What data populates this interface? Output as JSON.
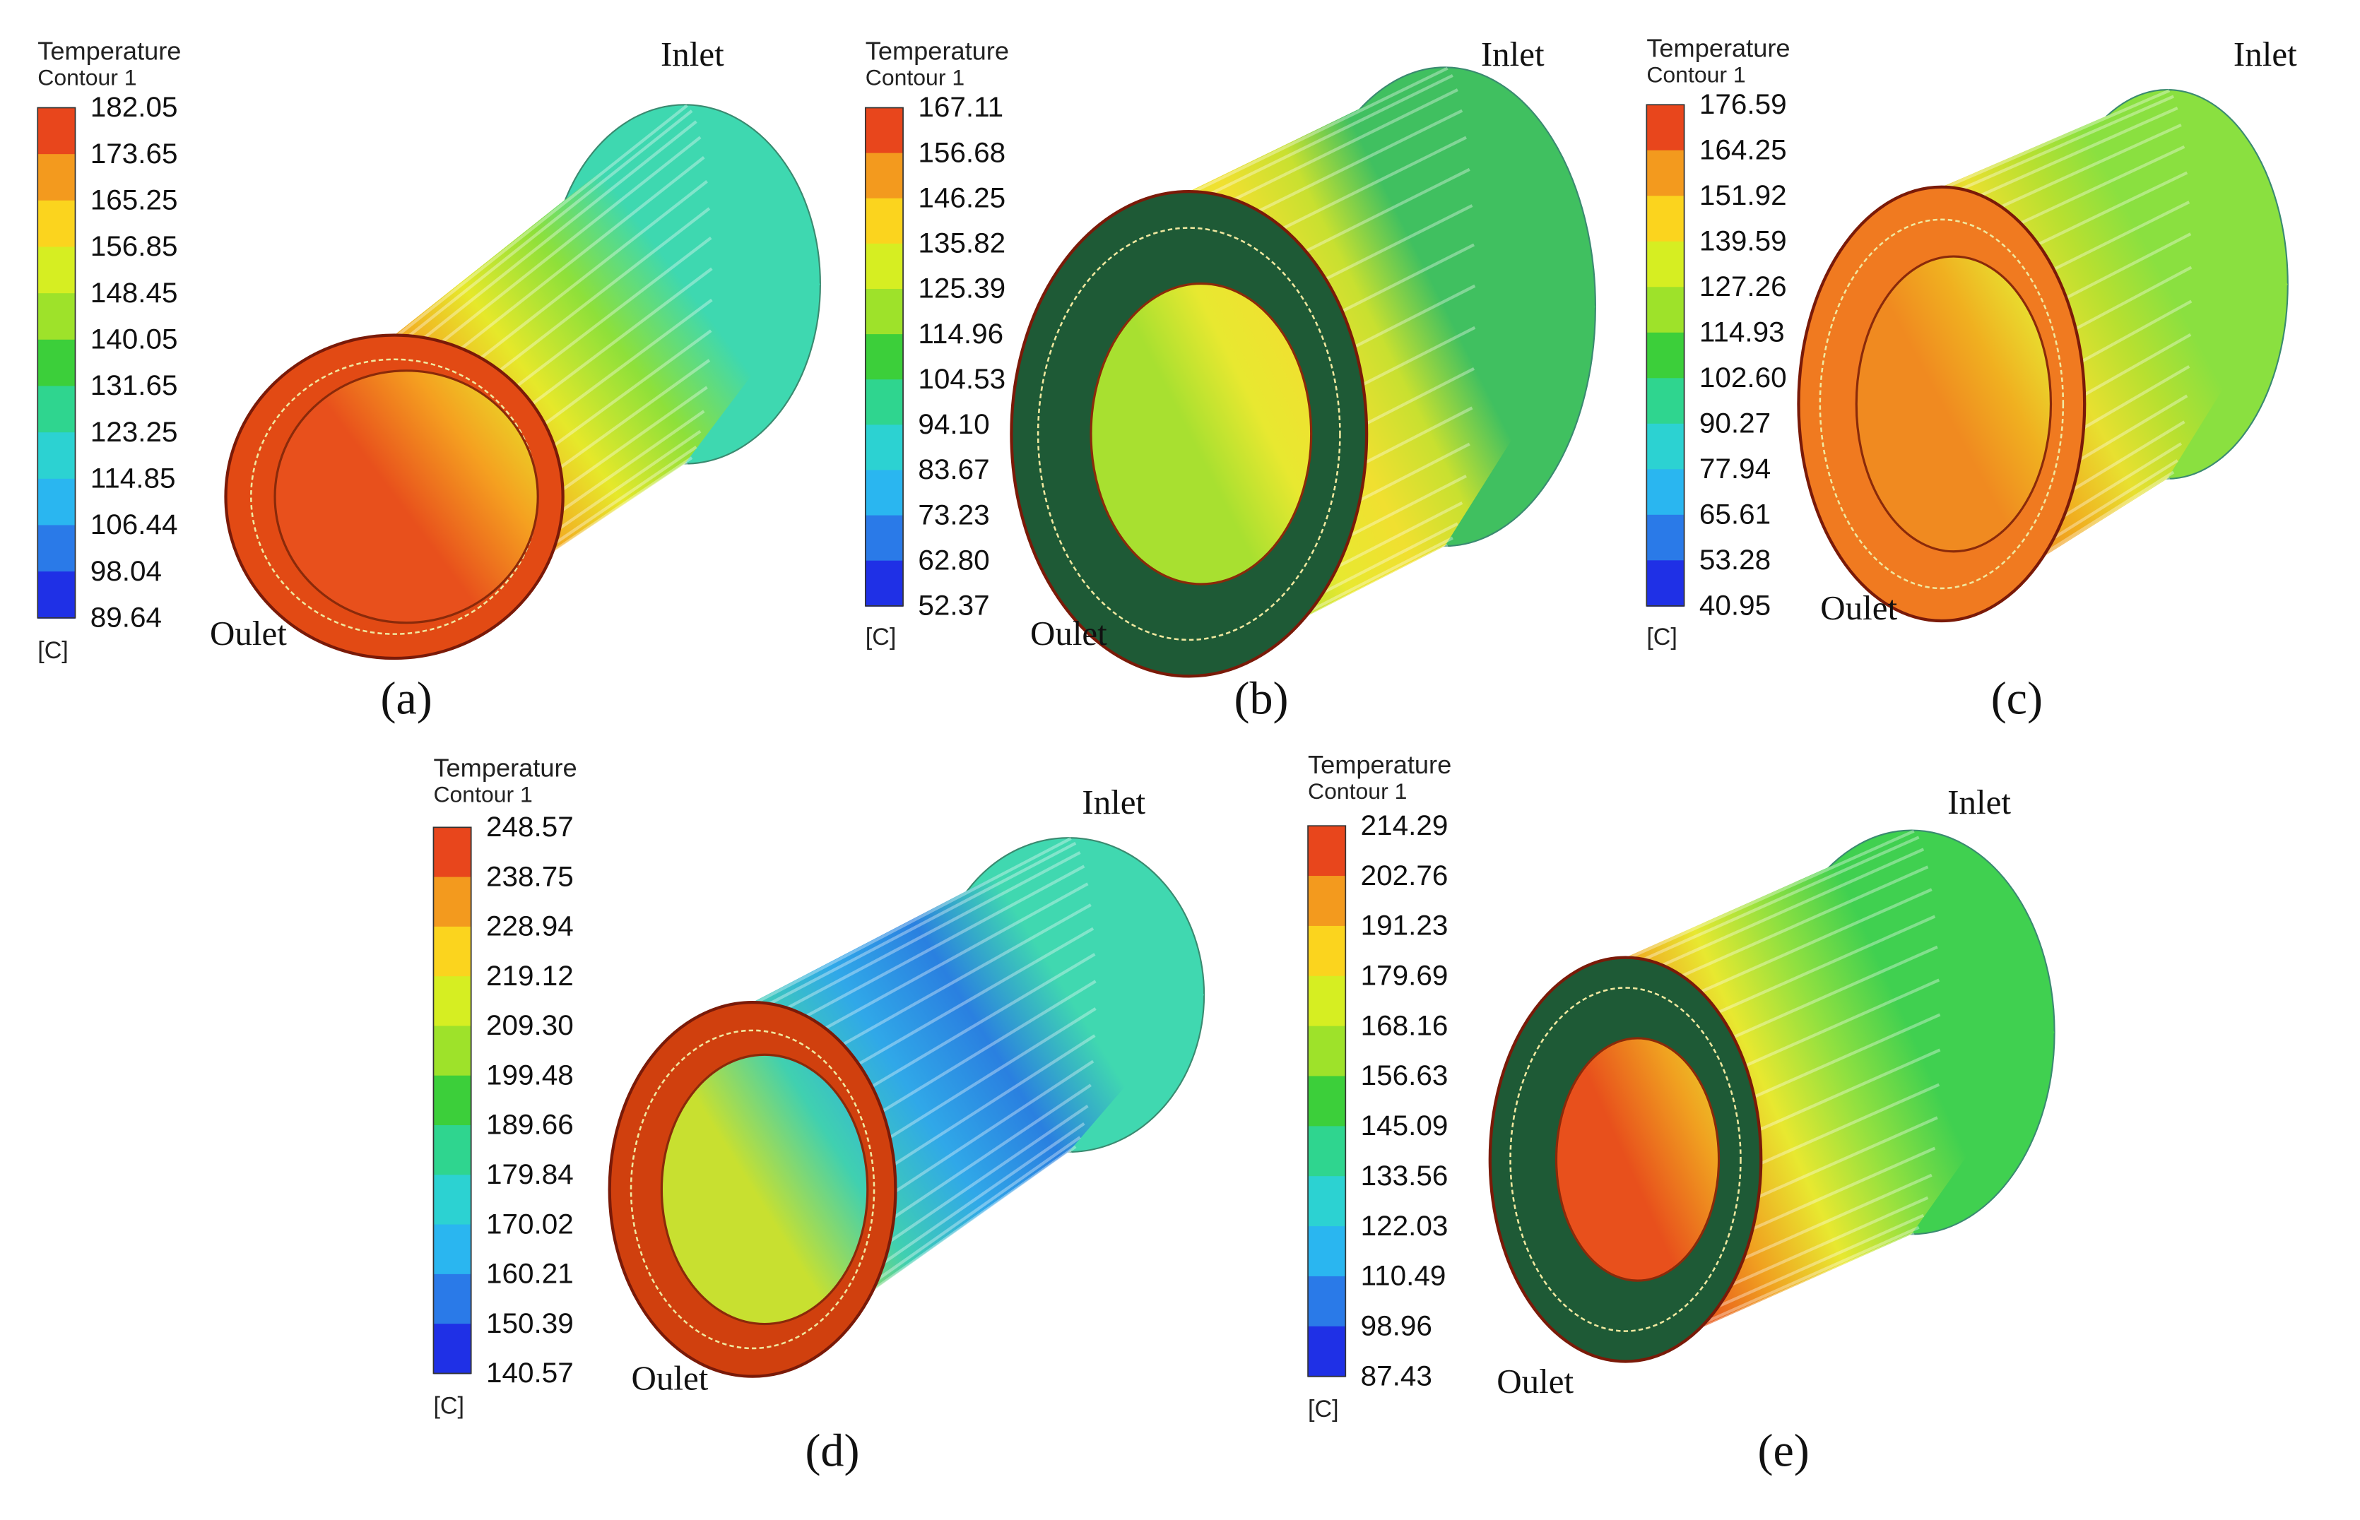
{
  "panels": [
    {
      "legend": {
        "title": "Temperature",
        "subtitle": "Contour 1",
        "labels": [
          "182.05",
          "173.65",
          "165.25",
          "156.85",
          "148.45",
          "140.05",
          "131.65",
          "123.25",
          "114.85",
          "106.44",
          "98.04",
          "89.64"
        ],
        "unit": "[C]"
      },
      "inlet": "Inlet",
      "outlet": "Oulet",
      "caption": "(a)"
    },
    {
      "legend": {
        "title": "Temperature",
        "subtitle": "Contour 1",
        "labels": [
          "167.11",
          "156.68",
          "146.25",
          "135.82",
          "125.39",
          "114.96",
          "104.53",
          "94.10",
          "83.67",
          "73.23",
          "62.80",
          "52.37"
        ],
        "unit": "[C]"
      },
      "inlet": "Inlet",
      "outlet": "Oulet",
      "caption": "(b)"
    },
    {
      "legend": {
        "title": "Temperature",
        "subtitle": "Contour 1",
        "labels": [
          "176.59",
          "164.25",
          "151.92",
          "139.59",
          "127.26",
          "114.93",
          "102.60",
          "90.27",
          "77.94",
          "65.61",
          "53.28",
          "40.95"
        ],
        "unit": "[C]"
      },
      "inlet": "Inlet",
      "outlet": "Oulet",
      "caption": "(c)"
    },
    {
      "legend": {
        "title": "Temperature",
        "subtitle": "Contour 1",
        "labels": [
          "248.57",
          "238.75",
          "228.94",
          "219.12",
          "209.30",
          "199.48",
          "189.66",
          "179.84",
          "170.02",
          "160.21",
          "150.39",
          "140.57"
        ],
        "unit": "[C]"
      },
      "inlet": "Inlet",
      "outlet": "Oulet",
      "caption": "(d)"
    },
    {
      "legend": {
        "title": "Temperature",
        "subtitle": "Contour 1",
        "labels": [
          "214.29",
          "202.76",
          "191.23",
          "179.69",
          "168.16",
          "156.63",
          "145.09",
          "133.56",
          "122.03",
          "110.49",
          "98.96",
          "87.43"
        ],
        "unit": "[C]"
      },
      "inlet": "Inlet",
      "outlet": "Oulet",
      "caption": "(e)"
    }
  ]
}
